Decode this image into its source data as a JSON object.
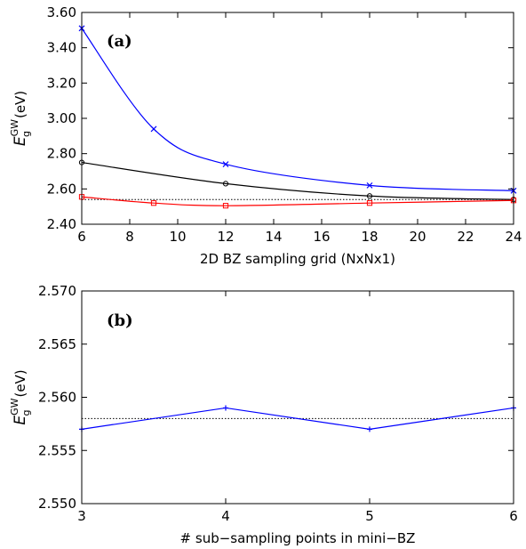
{
  "chart_data": [
    {
      "type": "line",
      "panel_label": "(a)",
      "xlabel": "2D BZ sampling grid (NxNx1)",
      "ylabel_main": "E",
      "ylabel_sub": "g",
      "ylabel_sup": "GW",
      "ylabel_unit": "(eV)",
      "xlim": [
        6,
        24
      ],
      "ylim": [
        2.4,
        3.6
      ],
      "xticks": [
        6,
        8,
        10,
        12,
        14,
        16,
        18,
        20,
        22,
        24
      ],
      "yticks": [
        "2.40",
        "2.60",
        "2.80",
        "3.00",
        "3.20",
        "3.40",
        "3.60"
      ],
      "reference_line": 2.54,
      "series": [
        {
          "marker": "x",
          "color": "#0000ff",
          "x": [
            6,
            9,
            12,
            18,
            24
          ],
          "y": [
            3.51,
            2.94,
            2.74,
            2.62,
            2.59
          ]
        },
        {
          "marker": "circle",
          "color": "#000000",
          "x": [
            6,
            12,
            18,
            24
          ],
          "y": [
            2.75,
            2.63,
            2.56,
            2.54
          ]
        },
        {
          "marker": "square",
          "color": "#ff0000",
          "x": [
            6,
            9,
            12,
            18,
            24
          ],
          "y": [
            2.555,
            2.52,
            2.505,
            2.52,
            2.535
          ]
        }
      ]
    },
    {
      "type": "line",
      "panel_label": "(b)",
      "xlabel": "# sub−sampling points in mini−BZ",
      "ylabel_main": "E",
      "ylabel_sub": "g",
      "ylabel_sup": "GW",
      "ylabel_unit": "(eV)",
      "xlim": [
        3,
        6
      ],
      "ylim": [
        2.55,
        2.57
      ],
      "xticks": [
        3,
        4,
        5,
        6
      ],
      "yticks": [
        "2.550",
        "2.555",
        "2.560",
        "2.565",
        "2.570"
      ],
      "reference_line": 2.558,
      "series": [
        {
          "marker": "plus",
          "color": "#0000ff",
          "x": [
            3,
            4,
            5,
            6
          ],
          "y": [
            2.557,
            2.559,
            2.557,
            2.559
          ]
        }
      ]
    }
  ]
}
